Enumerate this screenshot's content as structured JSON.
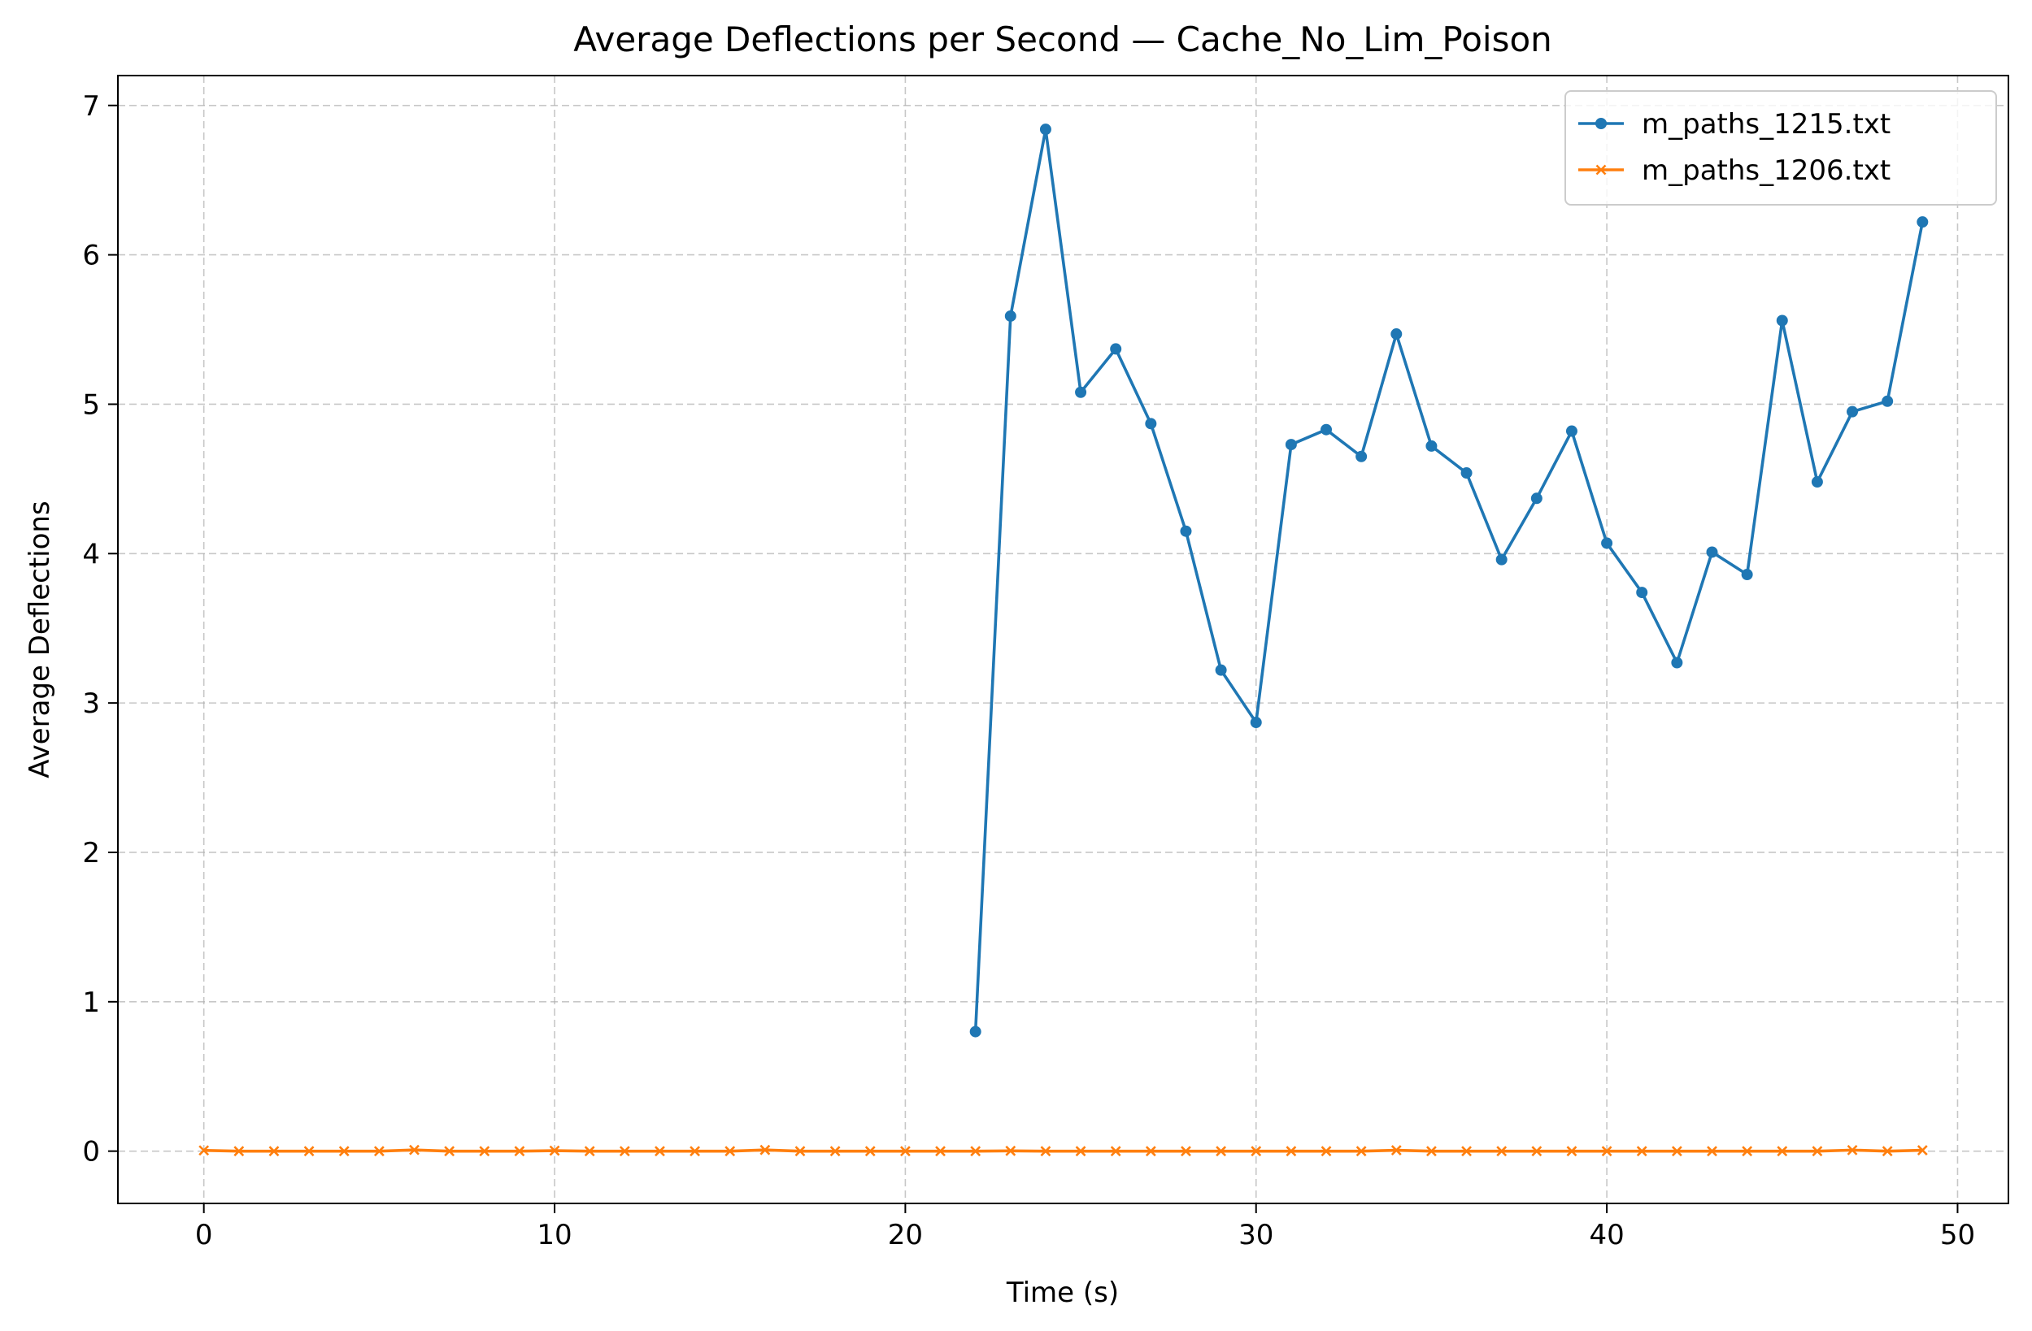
{
  "chart_data": {
    "type": "line",
    "title": "Average Deflections per Second — Cache_No_Lim_Poison",
    "xlabel": "Time (s)",
    "ylabel": "Average Deflections",
    "xlim": [
      -2.45,
      51.45
    ],
    "ylim": [
      -0.35,
      7.2
    ],
    "xticks": [
      0,
      10,
      20,
      30,
      40,
      50
    ],
    "yticks": [
      0,
      1,
      2,
      3,
      4,
      5,
      6,
      7
    ],
    "grid": true,
    "legend_position": "top-right",
    "series": [
      {
        "name": "m_paths_1215.txt",
        "color": "#1f77b4",
        "marker": "circle",
        "x": [
          22,
          23,
          24,
          25,
          26,
          27,
          28,
          29,
          30,
          31,
          32,
          33,
          34,
          35,
          36,
          37,
          38,
          39,
          40,
          41,
          42,
          43,
          44,
          45,
          46,
          47,
          48,
          49
        ],
        "y": [
          0.8,
          5.59,
          6.84,
          5.08,
          5.37,
          4.87,
          4.15,
          3.22,
          2.87,
          4.73,
          4.83,
          4.65,
          5.47,
          4.72,
          4.54,
          3.96,
          4.37,
          4.82,
          4.07,
          3.74,
          3.27,
          4.01,
          3.86,
          5.56,
          4.48,
          4.95,
          5.02,
          6.22
        ]
      },
      {
        "name": "m_paths_1206.txt",
        "color": "#ff7f0e",
        "marker": "x",
        "x": [
          0,
          1,
          2,
          3,
          4,
          5,
          6,
          7,
          8,
          9,
          10,
          11,
          12,
          13,
          14,
          15,
          16,
          17,
          18,
          19,
          20,
          21,
          22,
          23,
          24,
          25,
          26,
          27,
          28,
          29,
          30,
          31,
          32,
          33,
          34,
          35,
          36,
          37,
          38,
          39,
          40,
          41,
          42,
          43,
          44,
          45,
          46,
          47,
          48,
          49
        ],
        "y": [
          0.005,
          0,
          0,
          0,
          0,
          0,
          0.008,
          0,
          0,
          0,
          0.003,
          0,
          0,
          0,
          0,
          0,
          0.008,
          0,
          0,
          0,
          0,
          0,
          0,
          0.002,
          0,
          0,
          0,
          0,
          0,
          0,
          0,
          0,
          0,
          0,
          0.006,
          0,
          0,
          0,
          0,
          0,
          0,
          0,
          0,
          0,
          0,
          0,
          0,
          0.007,
          0,
          0.006
        ]
      }
    ]
  }
}
